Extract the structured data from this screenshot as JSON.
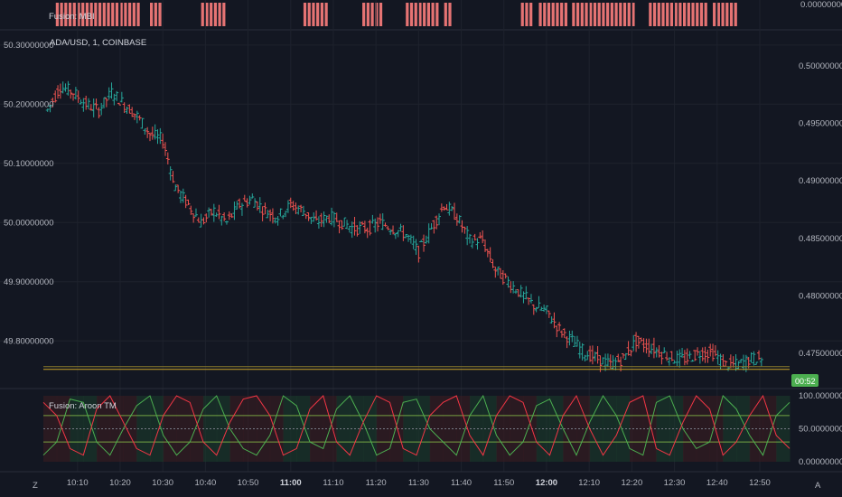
{
  "panes": {
    "mbi_title": "Fusion: MBI",
    "main_title": "ADA/USD, 1, COINBASE",
    "aroon_title": "Fusion: Aroon TM"
  },
  "colors": {
    "background": "#131722",
    "grid": "#1e222d",
    "up": "#26a69a",
    "down": "#ef5350",
    "mbi_bar": "#e57373",
    "aroon_up": "#4caf50",
    "aroon_down": "#f23645",
    "level_line": "#8bc34a",
    "time_badge": "#4caf50",
    "border": "#2a2e39"
  },
  "countdown": "00:52",
  "bottom_left_glyph": "Z",
  "bottom_right_glyph": "A",
  "chart_data": [
    {
      "type": "bar",
      "name": "Fusion: MBI",
      "right_axis_label": "0.00000000",
      "mbi_segments": [
        [
          10.082,
          10.4
        ],
        [
          10.45,
          10.5
        ],
        [
          10.65,
          10.75
        ],
        [
          11.05,
          11.15
        ],
        [
          11.28,
          11.35
        ],
        [
          11.45,
          11.58
        ],
        [
          11.6,
          11.63
        ],
        [
          11.9,
          11.95
        ],
        [
          11.97,
          12.08
        ],
        [
          12.1,
          12.35
        ],
        [
          12.4,
          12.62
        ],
        [
          12.65,
          12.75
        ]
      ]
    },
    {
      "type": "line",
      "name": "ADA/USD, 1, COINBASE",
      "left_axis_ticks": [
        "50.30000000",
        "50.20000000",
        "50.10000000",
        "50.00000000",
        "49.90000000",
        "49.80000000"
      ],
      "left_ylim": [
        49.75,
        50.315
      ],
      "right_axis_ticks": [
        "0.50000000",
        "0.49500000",
        "0.49000000",
        "0.48500000",
        "0.48000000",
        "0.47500000"
      ],
      "right_ylim": [
        0.4735,
        0.5026
      ],
      "x_tick_labels": [
        "10:10",
        "10:20",
        "10:30",
        "10:40",
        "10:50",
        "11:00",
        "11:10",
        "11:20",
        "11:30",
        "11:40",
        "11:50",
        "12:00",
        "12:10",
        "12:20",
        "12:30",
        "12:40",
        "12:50"
      ],
      "bold_ticks": [
        "11:00",
        "12:00"
      ],
      "x": [
        10.05,
        10.1,
        10.15,
        10.2,
        10.25,
        10.3,
        10.35,
        10.4,
        10.45,
        10.5,
        10.55,
        10.6,
        10.65,
        10.7,
        10.75,
        10.8,
        10.85,
        10.9,
        10.95,
        11.0,
        11.05,
        11.1,
        11.15,
        11.2,
        11.25,
        11.3,
        11.35,
        11.4,
        11.45,
        11.5,
        11.55,
        11.6,
        11.65,
        11.7,
        11.75,
        11.8,
        11.85,
        11.9,
        11.95,
        12.0,
        12.05,
        12.1,
        12.15,
        12.2,
        12.25,
        12.3,
        12.35,
        12.4,
        12.45,
        12.5,
        12.55,
        12.6,
        12.65,
        12.7,
        12.75,
        12.8,
        12.85
      ],
      "y": [
        50.19,
        50.23,
        50.22,
        50.2,
        50.19,
        50.22,
        50.2,
        50.18,
        50.15,
        50.14,
        50.06,
        50.03,
        50.0,
        50.02,
        50.0,
        50.03,
        50.04,
        50.02,
        50.01,
        50.03,
        50.02,
        50.0,
        50.01,
        50.0,
        49.99,
        49.99,
        50.0,
        49.99,
        49.98,
        49.95,
        49.99,
        50.03,
        50.01,
        49.97,
        49.97,
        49.92,
        49.9,
        49.88,
        49.86,
        49.85,
        49.82,
        49.8,
        49.78,
        49.77,
        49.76,
        49.77,
        49.8,
        49.79,
        49.78,
        49.77,
        49.77,
        49.78,
        49.78,
        49.76,
        49.76,
        49.77,
        49.77
      ],
      "price_line": 49.752
    },
    {
      "type": "line",
      "name": "Fusion: Aroon TM",
      "right_axis_ticks": [
        "100.00000000",
        "50.00000000",
        "0.00000000"
      ],
      "ylim": [
        0,
        100
      ],
      "levels": [
        70,
        30
      ],
      "series": [
        {
          "values": [
            10,
            30,
            95,
            90,
            30,
            10,
            50,
            85,
            100,
            40,
            10,
            30,
            80,
            100,
            50,
            20,
            10,
            40,
            100,
            85,
            30,
            20,
            80,
            100,
            60,
            10,
            20,
            90,
            95,
            50,
            30,
            10,
            70,
            100,
            40,
            10,
            30,
            85,
            95,
            50,
            10,
            60,
            100,
            70,
            20,
            10,
            90,
            100,
            50,
            20,
            30,
            100,
            80,
            40,
            10,
            70,
            90
          ]
        },
        {
          "values": [
            90,
            70,
            20,
            10,
            80,
            100,
            60,
            20,
            10,
            70,
            100,
            90,
            30,
            10,
            60,
            95,
            100,
            70,
            10,
            20,
            80,
            100,
            30,
            10,
            60,
            100,
            90,
            20,
            10,
            70,
            90,
            100,
            40,
            10,
            70,
            100,
            90,
            30,
            10,
            70,
            100,
            50,
            10,
            40,
            90,
            100,
            20,
            10,
            60,
            100,
            80,
            10,
            30,
            70,
            100,
            40,
            20
          ]
        }
      ]
    }
  ]
}
